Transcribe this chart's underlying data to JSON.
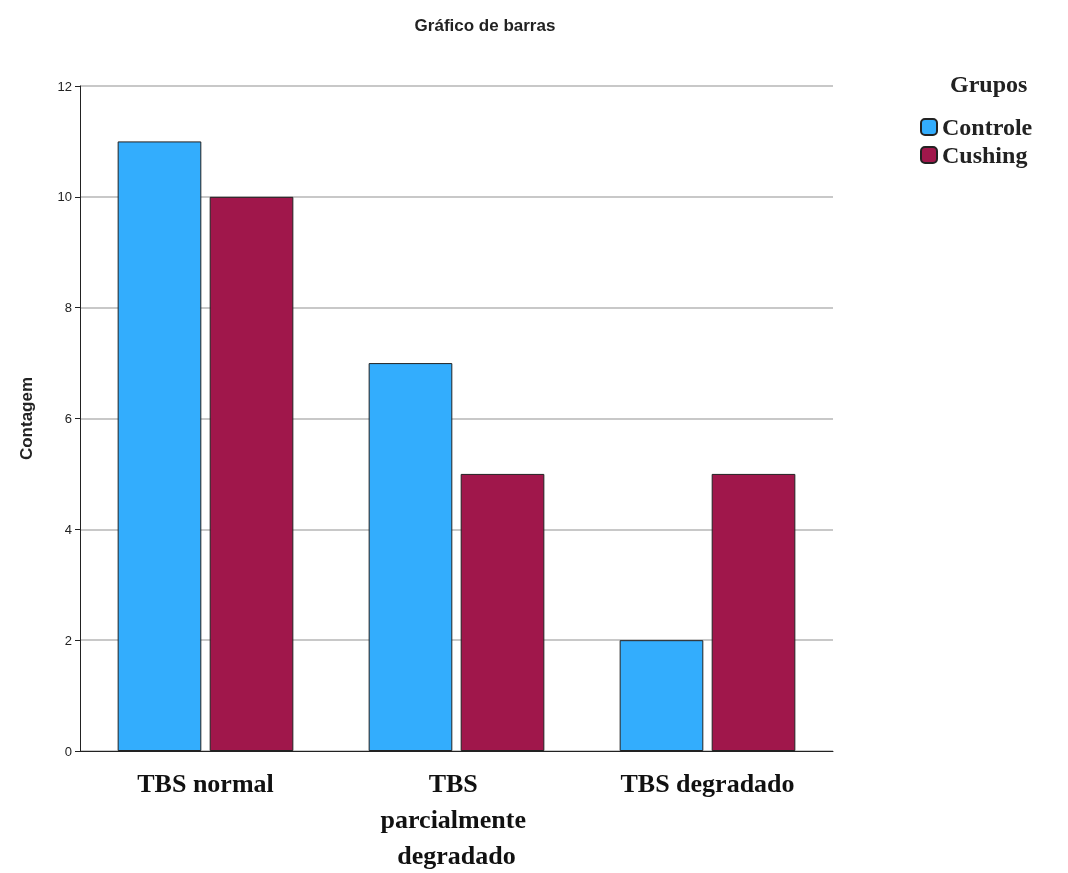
{
  "chart_data": {
    "type": "bar",
    "title": "Gráfico de barras",
    "ylabel": "Contagem",
    "legend_title": "Grupos",
    "categories": [
      "TBS normal",
      "TBS parcialmente degradado",
      "TBS degradado"
    ],
    "series": [
      {
        "name": "Controle",
        "color": "#33adfd",
        "values": [
          11,
          7,
          2
        ]
      },
      {
        "name": "Cushing",
        "color": "#a0174b",
        "values": [
          10,
          5,
          5
        ]
      }
    ],
    "ylim": [
      0,
      12
    ],
    "yticks": [
      0,
      2,
      4,
      6,
      8,
      10,
      12
    ],
    "grid": "y",
    "legend": "top right"
  }
}
